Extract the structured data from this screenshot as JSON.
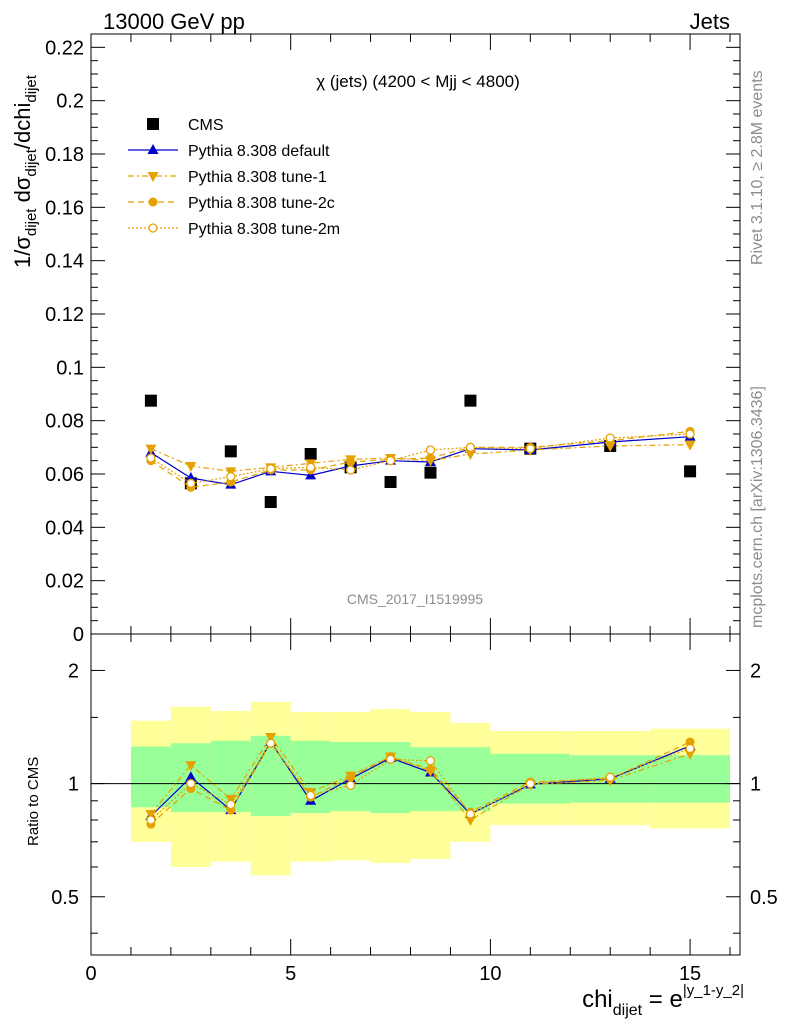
{
  "header": {
    "left": "13000 GeV pp",
    "right": "Jets"
  },
  "side": {
    "rivet": "Rivet 3.1.10, ≥ 2.8M events",
    "mcplots": "mcplots.cern.ch [arXiv:1306.3436]"
  },
  "analysis_id": "CMS_2017_I1519995",
  "colors": {
    "data": "#000000",
    "default": "#0000cc",
    "tunes": "#e5a100",
    "band_inner": "#99ff99",
    "band_outer": "#ffff99"
  },
  "chart_data": [
    {
      "type": "scatter",
      "title": "χ (jets) (4200 < Mjj < 4800)",
      "ylabel": "1/σ_dijet dσ_dijet/dchi_dijet",
      "xlim": [
        0,
        16.25
      ],
      "ylim": [
        0,
        0.225
      ],
      "yticks": [
        0,
        0.02,
        0.04,
        0.06,
        0.08,
        0.1,
        0.12,
        0.14,
        0.16,
        0.18,
        0.2,
        0.22
      ],
      "ytick_labels": [
        "0",
        "0.02",
        "0.04",
        "0.06",
        "0.08",
        "0.1",
        "0.12",
        "0.14",
        "0.16",
        "0.18",
        "0.2",
        "0.22"
      ],
      "legend_position": "top-left",
      "x": [
        1.5,
        2.5,
        3.5,
        4.5,
        5.5,
        6.5,
        7.5,
        8.5,
        9.5,
        11.0,
        13.0,
        15.0
      ],
      "series": [
        {
          "name": "CMS",
          "style": "data",
          "values": [
            0.0875,
            0.0565,
            0.0685,
            0.0495,
            0.0675,
            0.0625,
            0.057,
            0.0605,
            0.0875,
            0.0695,
            0.0705,
            0.061
          ]
        },
        {
          "name": "Pythia 8.308 default",
          "style": "default",
          "values": [
            0.068,
            0.0585,
            0.056,
            0.061,
            0.0595,
            0.063,
            0.065,
            0.0645,
            0.0695,
            0.069,
            0.072,
            0.074
          ]
        },
        {
          "name": "Pythia 8.308 tune-1",
          "style": "tune1",
          "values": [
            0.0695,
            0.063,
            0.061,
            0.0625,
            0.064,
            0.0655,
            0.066,
            0.065,
            0.0675,
            0.069,
            0.0705,
            0.071
          ]
        },
        {
          "name": "Pythia 8.308 tune-2c",
          "style": "tune2c",
          "values": [
            0.065,
            0.055,
            0.057,
            0.0615,
            0.0615,
            0.0645,
            0.0655,
            0.066,
            0.07,
            0.07,
            0.0725,
            0.076
          ]
        },
        {
          "name": "Pythia 8.308 tune-2m",
          "style": "tune2m",
          "values": [
            0.066,
            0.0565,
            0.059,
            0.062,
            0.0625,
            0.0615,
            0.065,
            0.069,
            0.07,
            0.0695,
            0.0735,
            0.075
          ]
        }
      ]
    },
    {
      "type": "scatter",
      "ylabel": "Ratio to CMS",
      "xlabel": "chi_dijet = e^|y_1-y_2|",
      "log_y": true,
      "xlim": [
        0,
        16.25
      ],
      "ylim": [
        0.35,
        2.5
      ],
      "xticks": [
        0,
        5,
        10,
        15
      ],
      "xtick_labels": [
        "0",
        "5",
        "10",
        "15"
      ],
      "yticks": [
        0.5,
        1,
        2
      ],
      "ytick_labels": [
        "0.5",
        "1",
        "2"
      ],
      "bins": [
        [
          1,
          2
        ],
        [
          2,
          3
        ],
        [
          3,
          4
        ],
        [
          4,
          5
        ],
        [
          5,
          6
        ],
        [
          6,
          7
        ],
        [
          7,
          8
        ],
        [
          8,
          9
        ],
        [
          9,
          10
        ],
        [
          10,
          12
        ],
        [
          12,
          14
        ],
        [
          14,
          16
        ]
      ],
      "band_inner": [
        [
          0.865,
          1.255
        ],
        [
          0.84,
          1.28
        ],
        [
          0.84,
          1.3
        ],
        [
          0.82,
          1.34
        ],
        [
          0.835,
          1.3
        ],
        [
          0.845,
          1.29
        ],
        [
          0.835,
          1.29
        ],
        [
          0.845,
          1.25
        ],
        [
          0.845,
          1.25
        ],
        [
          0.885,
          1.2
        ],
        [
          0.89,
          1.19
        ],
        [
          0.89,
          1.19
        ]
      ],
      "band_outer": [
        [
          0.7,
          1.47
        ],
        [
          0.6,
          1.6
        ],
        [
          0.62,
          1.56
        ],
        [
          0.57,
          1.65
        ],
        [
          0.62,
          1.55
        ],
        [
          0.625,
          1.55
        ],
        [
          0.615,
          1.58
        ],
        [
          0.63,
          1.55
        ],
        [
          0.7,
          1.45
        ],
        [
          0.775,
          1.38
        ],
        [
          0.775,
          1.38
        ],
        [
          0.76,
          1.4
        ]
      ],
      "x": [
        1.5,
        2.5,
        3.5,
        4.5,
        5.5,
        6.5,
        7.5,
        8.5,
        9.5,
        11.0,
        13.0,
        15.0
      ],
      "reference": 1,
      "series": [
        {
          "name": "Pythia 8.308 default",
          "style": "default",
          "values": [
            0.82,
            1.04,
            0.85,
            1.29,
            0.9,
            1.03,
            1.17,
            1.07,
            0.83,
            0.995,
            1.03,
            1.26
          ]
        },
        {
          "name": "Pythia 8.308 tune-1",
          "style": "tune1",
          "values": [
            0.83,
            1.12,
            0.91,
            1.33,
            0.95,
            1.05,
            1.18,
            1.08,
            0.8,
            0.995,
            1.02,
            1.2
          ]
        },
        {
          "name": "Pythia 8.308 tune-2c",
          "style": "tune2c",
          "values": [
            0.78,
            0.97,
            0.85,
            1.28,
            0.92,
            1.04,
            1.18,
            1.09,
            0.84,
            1.01,
            1.03,
            1.29
          ]
        },
        {
          "name": "Pythia 8.308 tune-2m",
          "style": "tune2m",
          "values": [
            0.8,
            1.0,
            0.88,
            1.28,
            0.93,
            0.99,
            1.16,
            1.15,
            0.83,
            1.0,
            1.04,
            1.24
          ]
        }
      ]
    }
  ]
}
